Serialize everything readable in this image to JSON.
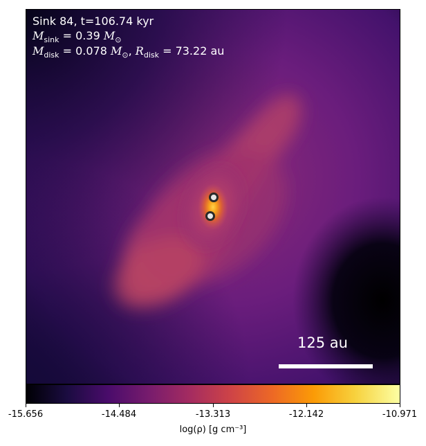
{
  "annotation": {
    "sink_line": "Sink 84, t=106.74 kyr",
    "sink_mass_symbol": "M",
    "sink_mass_sub": "sink",
    "sink_mass_value": "= 0.39",
    "sun_symbol": "M",
    "sun_sub": "⊙",
    "disk_mass_symbol": "M",
    "disk_mass_sub": "disk",
    "disk_mass_value": "= 0.078",
    "disk_radius_symbol": "R",
    "disk_radius_sub": "disk",
    "disk_radius_value": "= 73.22 au"
  },
  "scale_bar": {
    "label": "125 au"
  },
  "colorbar": {
    "label": "log(ρ) [g cm⁻³]",
    "ticks": [
      "-15.656",
      "-14.484",
      "-13.313",
      "-12.142",
      "-10.971"
    ],
    "range": [
      -15.656,
      -10.971
    ],
    "colormap": "inferno"
  },
  "sinks": [
    {
      "name": "sink-upper"
    },
    {
      "name": "sink-lower"
    }
  ],
  "colors": {
    "background_dark": "#0a0518",
    "envelope": "#5e1a78",
    "filament": "#b8406a",
    "core": "#f28a1e",
    "sink_fill": "#e8e8e8",
    "sink_ring": "#2a2a2a"
  }
}
